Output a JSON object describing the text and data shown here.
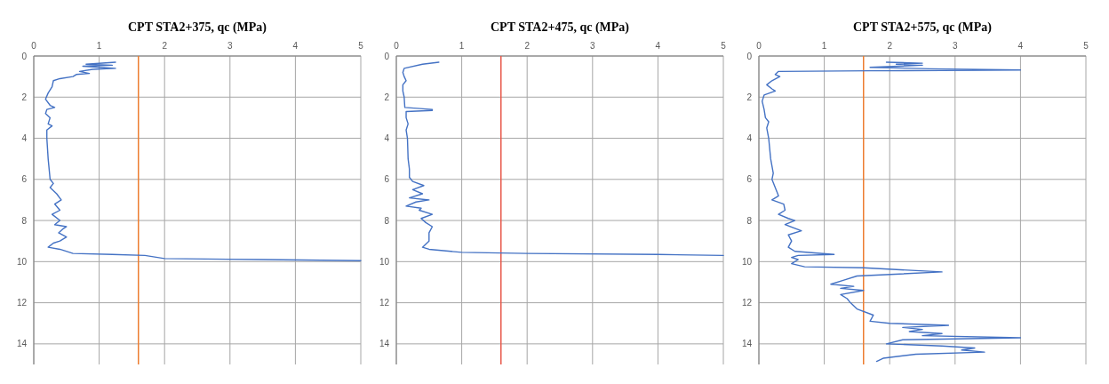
{
  "chart_data": [
    {
      "type": "line",
      "title": "CPT STA2+375, qc (MPa)",
      "xlim": [
        0,
        5
      ],
      "xticks": [
        0,
        1,
        2,
        3,
        4,
        5
      ],
      "ylim": [
        15,
        0
      ],
      "yticks": [
        0,
        2,
        4,
        6,
        8,
        10,
        12,
        14
      ],
      "grid": true,
      "marker": "none",
      "line_style": "solid",
      "series": [
        {
          "color": "#4472c4",
          "x": [
            1.25,
            0.8,
            1.2,
            0.75,
            1.25,
            0.9,
            0.7,
            0.85,
            0.65,
            0.6,
            0.4,
            0.3,
            0.28,
            0.22,
            0.18,
            0.25,
            0.32,
            0.2,
            0.18,
            0.25,
            0.22,
            0.28,
            0.2,
            0.2,
            0.22,
            0.25,
            0.3,
            0.25,
            0.35,
            0.42,
            0.32,
            0.4,
            0.28,
            0.4,
            0.32,
            0.5,
            0.45,
            0.38,
            0.5,
            0.4,
            0.3,
            0.22,
            0.4,
            0.6,
            1.2,
            1.7,
            2.0,
            3.5,
            5.0
          ],
          "values": [
            0.3,
            0.4,
            0.45,
            0.5,
            0.6,
            0.65,
            0.75,
            0.85,
            0.9,
            1.0,
            1.1,
            1.2,
            1.5,
            1.8,
            2.1,
            2.4,
            2.5,
            2.6,
            2.8,
            3.0,
            3.3,
            3.4,
            3.6,
            4.0,
            5.0,
            6.0,
            6.2,
            6.4,
            6.7,
            7.0,
            7.2,
            7.5,
            7.7,
            8.0,
            8.2,
            8.3,
            8.4,
            8.6,
            8.8,
            9.0,
            9.1,
            9.3,
            9.4,
            9.6,
            9.65,
            9.7,
            9.85,
            9.9,
            9.95
          ]
        }
      ],
      "ref_lines": [
        {
          "axis": "x",
          "value": 1.6,
          "color": "#ed7d31"
        }
      ]
    },
    {
      "type": "line",
      "title": "CPT STA2+475, qc (MPa)",
      "xlim": [
        0,
        5
      ],
      "xticks": [
        0,
        1,
        2,
        3,
        4,
        5
      ],
      "ylim": [
        15,
        0
      ],
      "yticks": [
        0,
        2,
        4,
        6,
        8,
        10,
        12,
        14
      ],
      "grid": true,
      "marker": "none",
      "line_style": "solid",
      "series": [
        {
          "color": "#4472c4",
          "x": [
            0.65,
            0.4,
            0.12,
            0.1,
            0.12,
            0.15,
            0.1,
            0.1,
            0.12,
            0.13,
            0.55,
            0.55,
            0.15,
            0.15,
            0.18,
            0.15,
            0.17,
            0.18,
            0.2,
            0.2,
            0.25,
            0.42,
            0.25,
            0.4,
            0.2,
            0.5,
            0.3,
            0.15,
            0.38,
            0.35,
            0.55,
            0.38,
            0.45,
            0.55,
            0.5,
            0.5,
            0.4,
            0.5,
            1.0,
            2.0,
            4.0,
            5.0
          ],
          "values": [
            0.3,
            0.4,
            0.6,
            0.8,
            1.0,
            1.2,
            1.4,
            1.7,
            2.0,
            2.5,
            2.6,
            2.65,
            2.7,
            3.0,
            3.3,
            3.6,
            4.0,
            5.0,
            5.5,
            5.9,
            6.1,
            6.3,
            6.5,
            6.7,
            6.9,
            7.0,
            7.1,
            7.3,
            7.4,
            7.5,
            7.7,
            7.9,
            8.1,
            8.3,
            8.6,
            9.0,
            9.3,
            9.4,
            9.55,
            9.6,
            9.65,
            9.7
          ]
        }
      ],
      "ref_lines": [
        {
          "axis": "x",
          "value": 1.6,
          "color": "#e8584a"
        }
      ]
    },
    {
      "type": "line",
      "title": "CPT STA2+575, qc (MPa)",
      "xlim": [
        0,
        5
      ],
      "xticks": [
        0,
        1,
        2,
        3,
        4,
        5
      ],
      "ylim": [
        15,
        0
      ],
      "yticks": [
        0,
        2,
        4,
        6,
        8,
        10,
        12,
        14
      ],
      "grid": true,
      "marker": "none",
      "line_style": "solid",
      "series": [
        {
          "color": "#4472c4",
          "x": [
            1.95,
            2.5,
            2.1,
            2.5,
            1.7,
            2.6,
            4.0,
            1.7,
            0.3,
            0.25,
            0.32,
            0.2,
            0.12,
            0.2,
            0.25,
            0.08,
            0.05,
            0.08,
            0.1,
            0.15,
            0.12,
            0.15,
            0.18,
            0.22,
            0.2,
            0.25,
            0.3,
            0.2,
            0.38,
            0.4,
            0.3,
            0.45,
            0.55,
            0.4,
            0.65,
            0.45,
            0.5,
            0.45,
            0.55,
            1.15,
            0.6,
            0.5,
            0.6,
            0.5,
            0.7,
            1.6,
            2.8,
            1.5,
            1.3,
            1.1,
            1.45,
            1.25,
            1.6,
            1.25,
            1.35,
            1.4,
            1.5,
            1.75,
            1.7,
            2.0,
            2.9,
            2.2,
            2.5,
            2.3,
            2.8,
            2.5,
            4.0,
            2.2,
            1.95,
            2.8,
            3.3,
            3.1,
            3.45,
            2.4,
            1.9,
            1.8
          ],
          "values": [
            0.3,
            0.35,
            0.4,
            0.45,
            0.55,
            0.62,
            0.68,
            0.72,
            0.75,
            0.9,
            1.0,
            1.2,
            1.4,
            1.6,
            1.7,
            1.9,
            2.2,
            2.6,
            3.0,
            3.2,
            3.5,
            4.0,
            5.0,
            5.7,
            6.0,
            6.4,
            6.8,
            7.0,
            7.2,
            7.5,
            7.7,
            7.9,
            8.0,
            8.2,
            8.5,
            8.7,
            9.0,
            9.3,
            9.5,
            9.65,
            9.7,
            9.8,
            9.9,
            10.1,
            10.25,
            10.3,
            10.5,
            10.7,
            10.9,
            11.1,
            11.2,
            11.3,
            11.4,
            11.6,
            11.8,
            12.0,
            12.3,
            12.6,
            12.9,
            13.0,
            13.1,
            13.2,
            13.3,
            13.4,
            13.5,
            13.6,
            13.7,
            13.8,
            14.0,
            14.1,
            14.2,
            14.3,
            14.4,
            14.5,
            14.7,
            14.85
          ]
        }
      ],
      "ref_lines": [
        {
          "axis": "x",
          "value": 1.6,
          "color": "#ed7d31"
        }
      ]
    }
  ]
}
